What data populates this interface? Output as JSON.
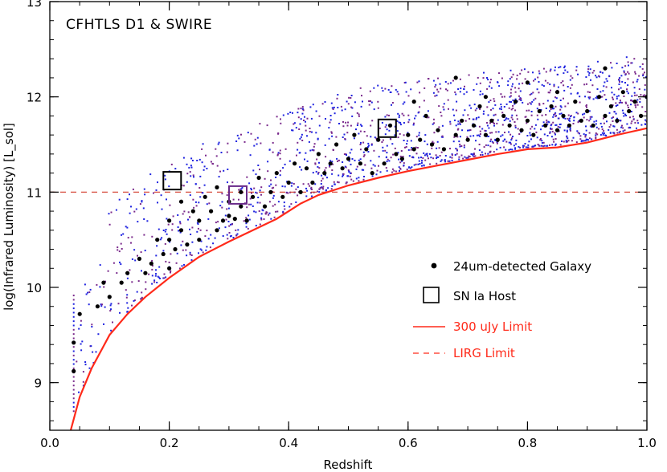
{
  "chart_data": {
    "type": "scatter",
    "title": "CFHTLS D1 & SWIRE",
    "xlabel": "Redshift",
    "ylabel": "log(Infrared Luminosity) [L_sol]",
    "xlim": [
      0.0,
      1.0
    ],
    "ylim": [
      8.5,
      13.0
    ],
    "x_ticks": [
      0.0,
      0.2,
      0.4,
      0.6,
      0.8,
      1.0
    ],
    "x_tick_labels": [
      "0.0",
      "0.2",
      "0.4",
      "0.6",
      "0.8",
      "1.0"
    ],
    "y_ticks": [
      9,
      10,
      11,
      12,
      13
    ],
    "y_tick_labels": [
      "9",
      "10",
      "11",
      "12",
      "13"
    ],
    "grid": false,
    "legend_position": "bottom-right",
    "colors": {
      "galaxy": "#000000",
      "background_blue": "#1f23e0",
      "background_purple": "#7a2a8c",
      "flux_limit": "#ff2a1a",
      "lirg_limit": "#d23a2a",
      "sn_host_2": "#6a2a8a"
    },
    "series": [
      {
        "name": "24um-detected Galaxy",
        "kind": "scatter",
        "points": [
          [
            0.04,
            9.42
          ],
          [
            0.04,
            9.12
          ],
          [
            0.05,
            9.72
          ],
          [
            0.08,
            9.8
          ],
          [
            0.09,
            10.05
          ],
          [
            0.1,
            9.9
          ],
          [
            0.12,
            10.05
          ],
          [
            0.13,
            10.15
          ],
          [
            0.15,
            10.3
          ],
          [
            0.16,
            10.15
          ],
          [
            0.17,
            10.25
          ],
          [
            0.18,
            10.5
          ],
          [
            0.19,
            10.35
          ],
          [
            0.2,
            10.7
          ],
          [
            0.2,
            10.5
          ],
          [
            0.2,
            10.2
          ],
          [
            0.21,
            10.4
          ],
          [
            0.22,
            10.9
          ],
          [
            0.22,
            10.6
          ],
          [
            0.23,
            10.45
          ],
          [
            0.24,
            10.8
          ],
          [
            0.25,
            10.7
          ],
          [
            0.25,
            10.5
          ],
          [
            0.26,
            10.95
          ],
          [
            0.27,
            10.8
          ],
          [
            0.28,
            10.6
          ],
          [
            0.28,
            11.05
          ],
          [
            0.29,
            10.7
          ],
          [
            0.3,
            10.9
          ],
          [
            0.3,
            10.75
          ],
          [
            0.31,
            10.72
          ],
          [
            0.32,
            11.0
          ],
          [
            0.32,
            10.85
          ],
          [
            0.33,
            10.7
          ],
          [
            0.34,
            10.95
          ],
          [
            0.35,
            11.15
          ],
          [
            0.36,
            10.85
          ],
          [
            0.37,
            11.0
          ],
          [
            0.38,
            11.2
          ],
          [
            0.39,
            10.95
          ],
          [
            0.4,
            11.1
          ],
          [
            0.41,
            11.3
          ],
          [
            0.42,
            11.0
          ],
          [
            0.43,
            11.25
          ],
          [
            0.44,
            11.1
          ],
          [
            0.45,
            11.4
          ],
          [
            0.46,
            11.2
          ],
          [
            0.47,
            11.3
          ],
          [
            0.48,
            11.5
          ],
          [
            0.49,
            11.25
          ],
          [
            0.5,
            11.35
          ],
          [
            0.51,
            11.6
          ],
          [
            0.52,
            11.3
          ],
          [
            0.53,
            11.45
          ],
          [
            0.54,
            11.2
          ],
          [
            0.55,
            11.55
          ],
          [
            0.56,
            11.3
          ],
          [
            0.57,
            11.7
          ],
          [
            0.58,
            11.4
          ],
          [
            0.59,
            11.35
          ],
          [
            0.6,
            11.6
          ],
          [
            0.61,
            11.45
          ],
          [
            0.62,
            11.55
          ],
          [
            0.63,
            11.8
          ],
          [
            0.64,
            11.5
          ],
          [
            0.65,
            11.65
          ],
          [
            0.66,
            11.45
          ],
          [
            0.68,
            12.2
          ],
          [
            0.68,
            11.6
          ],
          [
            0.69,
            11.75
          ],
          [
            0.7,
            11.55
          ],
          [
            0.71,
            11.7
          ],
          [
            0.72,
            11.9
          ],
          [
            0.73,
            11.6
          ],
          [
            0.74,
            11.75
          ],
          [
            0.75,
            11.55
          ],
          [
            0.76,
            11.8
          ],
          [
            0.77,
            11.7
          ],
          [
            0.78,
            11.95
          ],
          [
            0.79,
            11.65
          ],
          [
            0.8,
            11.75
          ],
          [
            0.8,
            12.15
          ],
          [
            0.81,
            11.6
          ],
          [
            0.82,
            11.85
          ],
          [
            0.83,
            11.7
          ],
          [
            0.84,
            11.9
          ],
          [
            0.85,
            11.65
          ],
          [
            0.86,
            11.8
          ],
          [
            0.87,
            11.7
          ],
          [
            0.88,
            11.95
          ],
          [
            0.89,
            11.75
          ],
          [
            0.9,
            11.85
          ],
          [
            0.91,
            11.7
          ],
          [
            0.92,
            12.0
          ],
          [
            0.93,
            11.8
          ],
          [
            0.94,
            11.9
          ],
          [
            0.95,
            11.75
          ],
          [
            0.96,
            12.05
          ],
          [
            0.97,
            11.85
          ],
          [
            0.98,
            11.95
          ],
          [
            0.99,
            11.8
          ],
          [
            1.0,
            12.0
          ],
          [
            0.93,
            12.3
          ],
          [
            0.85,
            12.05
          ],
          [
            0.73,
            12.0
          ],
          [
            0.61,
            11.95
          ]
        ]
      },
      {
        "name": "SN Ia Host",
        "kind": "marker",
        "points": [
          [
            0.205,
            11.12
          ],
          [
            0.315,
            10.97
          ],
          [
            0.565,
            11.67
          ]
        ]
      },
      {
        "name": "300 uJy Limit",
        "kind": "line",
        "points": [
          [
            0.035,
            8.5
          ],
          [
            0.05,
            8.85
          ],
          [
            0.07,
            9.15
          ],
          [
            0.1,
            9.5
          ],
          [
            0.13,
            9.72
          ],
          [
            0.16,
            9.9
          ],
          [
            0.2,
            10.1
          ],
          [
            0.25,
            10.32
          ],
          [
            0.3,
            10.48
          ],
          [
            0.35,
            10.63
          ],
          [
            0.38,
            10.72
          ],
          [
            0.42,
            10.88
          ],
          [
            0.45,
            10.97
          ],
          [
            0.5,
            11.07
          ],
          [
            0.55,
            11.15
          ],
          [
            0.6,
            11.22
          ],
          [
            0.65,
            11.28
          ],
          [
            0.7,
            11.34
          ],
          [
            0.75,
            11.4
          ],
          [
            0.8,
            11.45
          ],
          [
            0.85,
            11.47
          ],
          [
            0.9,
            11.52
          ],
          [
            0.95,
            11.6
          ],
          [
            1.0,
            11.67
          ]
        ]
      },
      {
        "name": "LIRG Limit",
        "kind": "hline",
        "y": 11.0
      }
    ],
    "legend": [
      {
        "label": "24um-detected Galaxy",
        "marker": "dot",
        "color": "#000000"
      },
      {
        "label": "SN Ia Host",
        "marker": "square",
        "color": "#000000"
      },
      {
        "label": "300 uJy Limit",
        "marker": "solid-line",
        "color": "#ff2a1a"
      },
      {
        "label": "LIRG Limit",
        "marker": "dashed-line",
        "color": "#ff2a1a"
      }
    ]
  }
}
